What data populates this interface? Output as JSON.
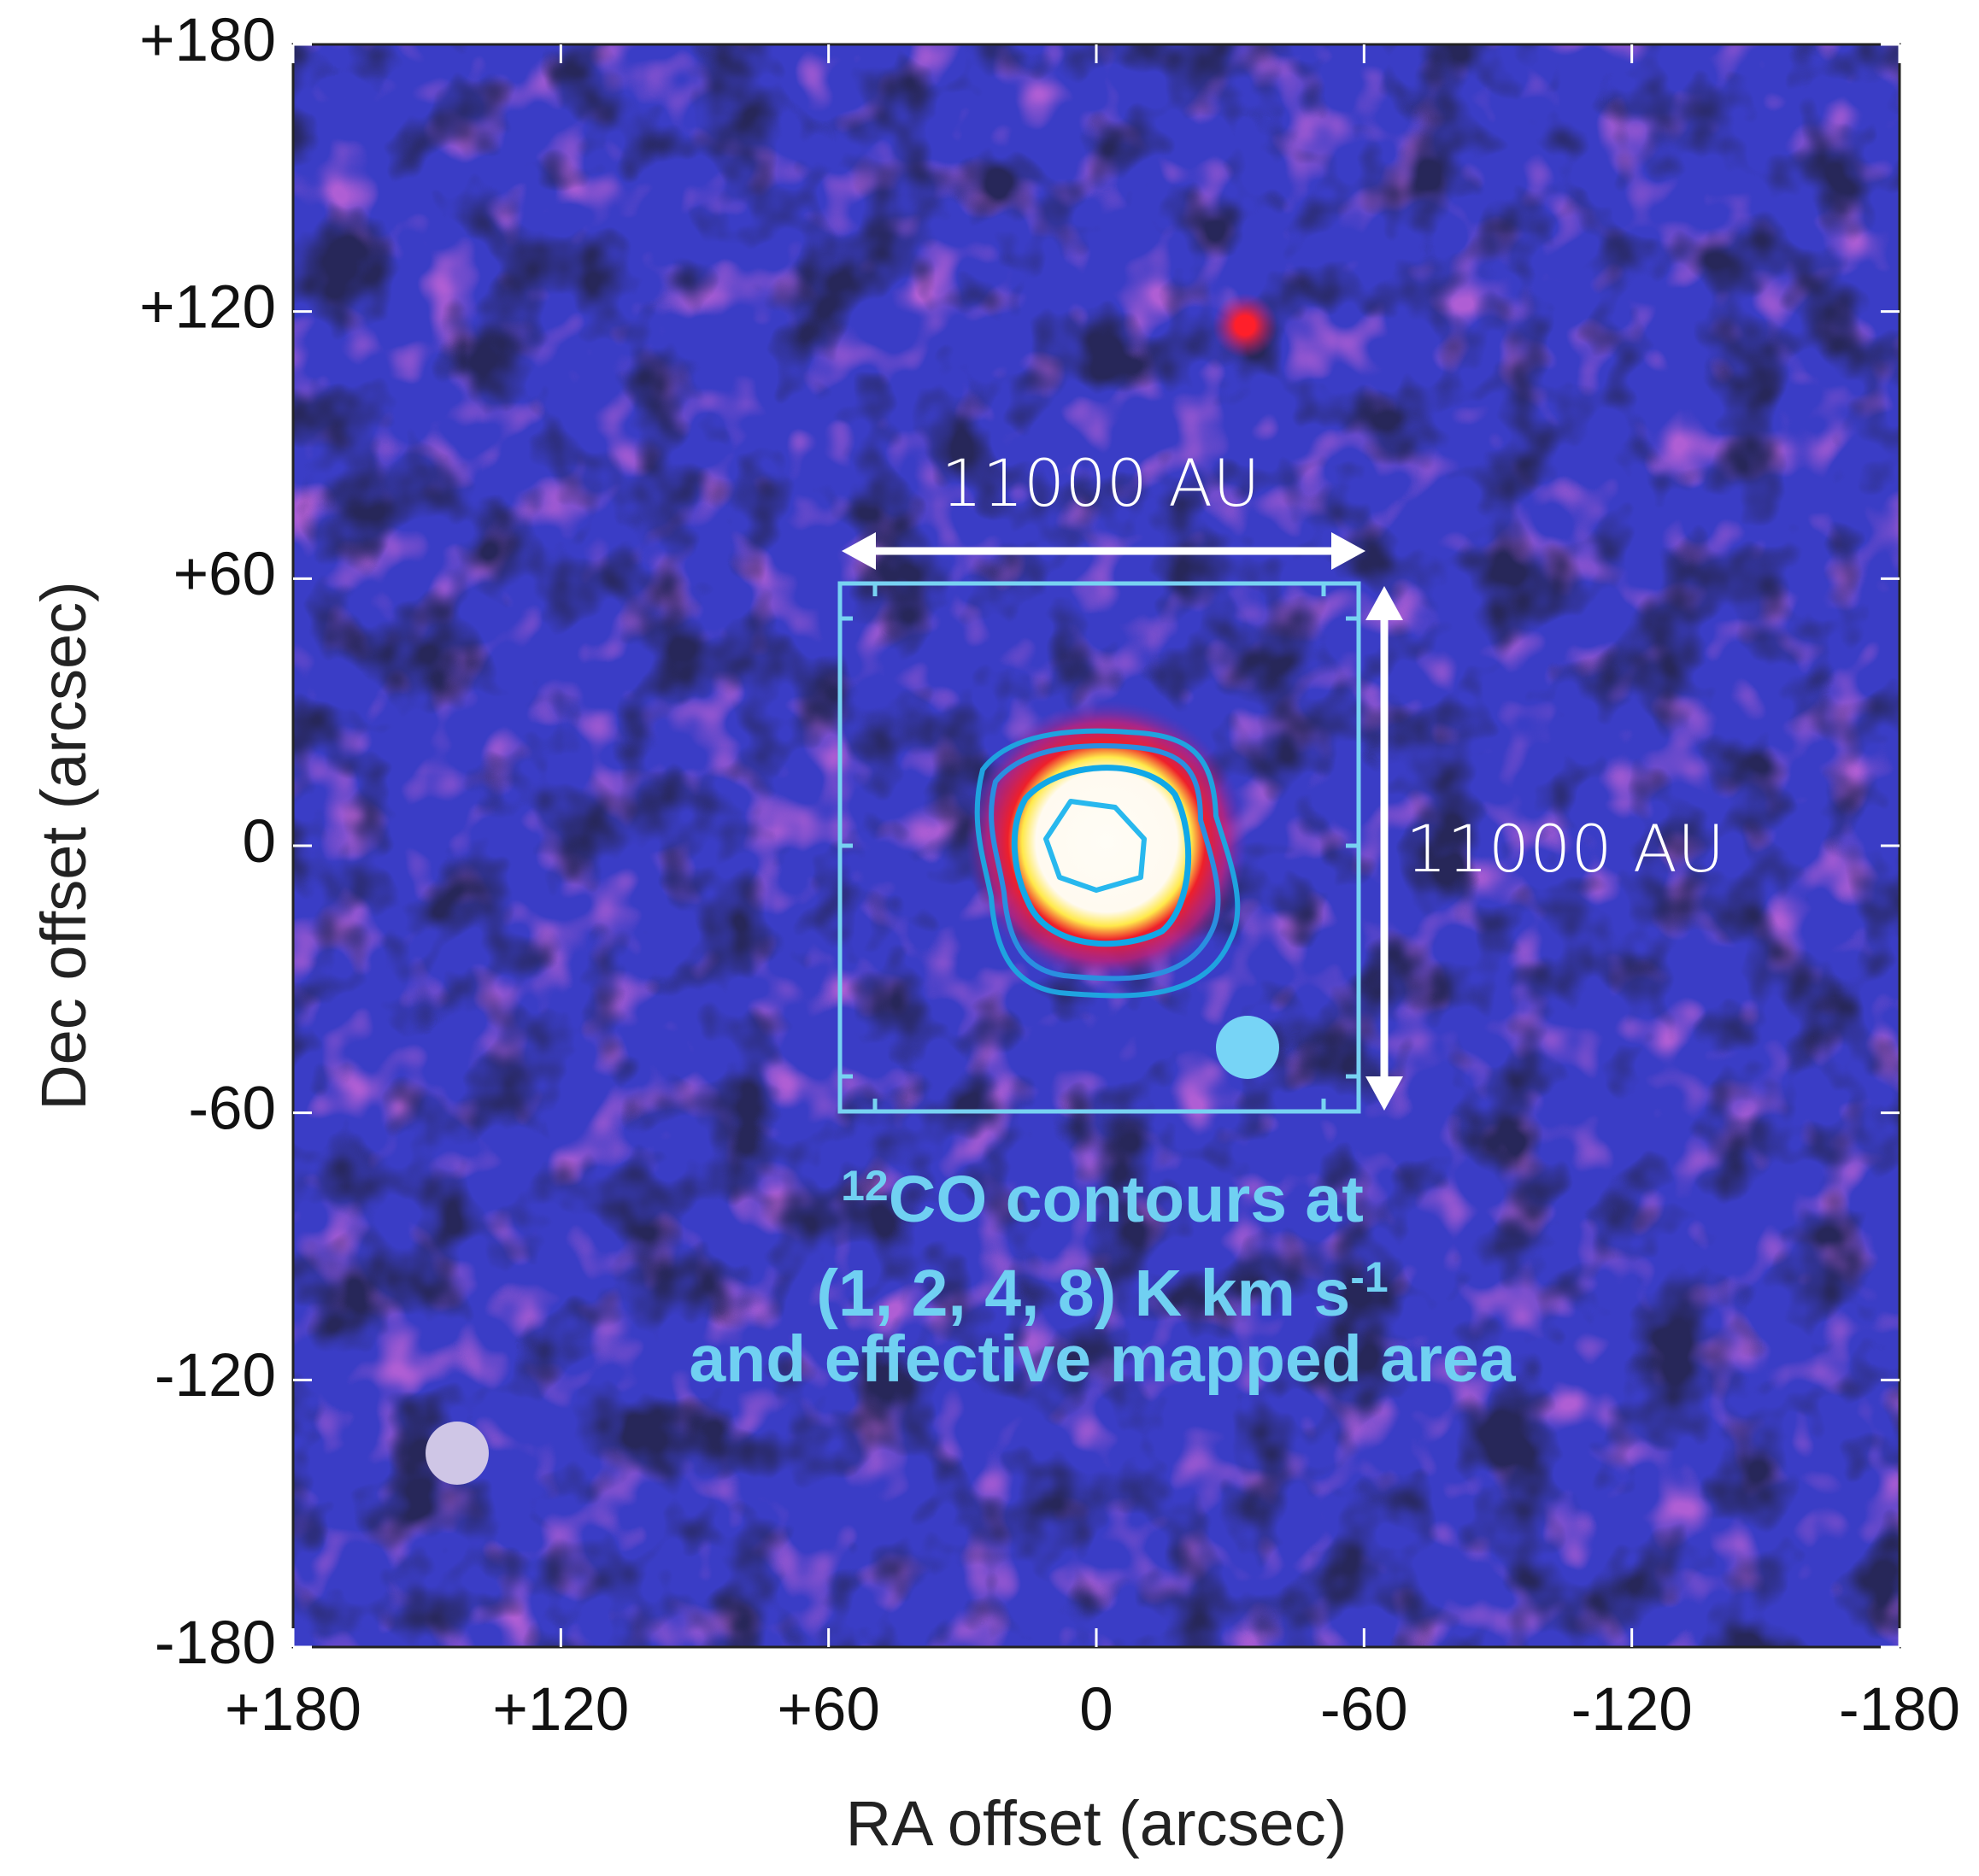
{
  "chart_data": {
    "type": "image",
    "xlabel": "RA offset (arcsec)",
    "ylabel": "Dec offset (arcsec)",
    "xlim": [
      180,
      -180
    ],
    "ylim": [
      -180,
      180
    ],
    "xticks": [
      {
        "value": 180,
        "label": "+180"
      },
      {
        "value": 120,
        "label": "+120"
      },
      {
        "value": 60,
        "label": "+60"
      },
      0,
      -60,
      -120,
      -180
    ],
    "yticks": [
      {
        "value": 180,
        "label": "+180"
      },
      {
        "value": 120,
        "label": "+120"
      },
      {
        "value": 60,
        "label": "+60"
      },
      0,
      -60,
      -120,
      -180
    ],
    "annotations": {
      "scale_x": "11000 AU",
      "scale_y": "11000 AU",
      "caption": {
        "line1_sup": "12",
        "line1": "CO contours at",
        "line2": "(1, 2, 4, 8) K km s",
        "line2_sup": "-1",
        "line3": "and effective mapped area"
      }
    }
  }
}
